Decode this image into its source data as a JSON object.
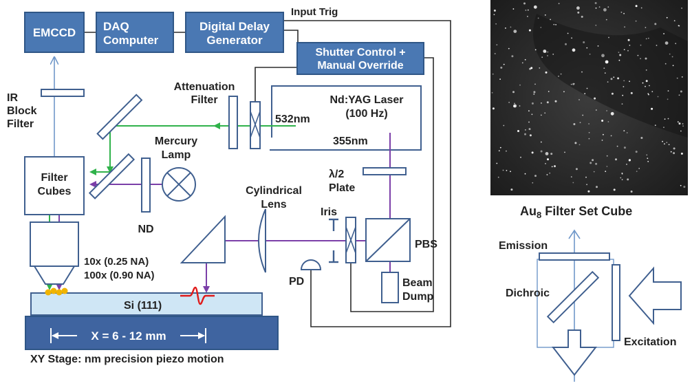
{
  "colors": {
    "box_fill": "#4a78b3",
    "optic_stroke": "#3f5f8f",
    "green_beam": "#2fb24a",
    "purple_beam": "#7b3fa8",
    "blue_beam": "#6f97c9",
    "sample": "#cfe6f5",
    "stage": "#3f64a0",
    "gold": "#f0b400",
    "pulse": "#e01a1a"
  },
  "boxes": {
    "emccd": "EMCCD",
    "daq_1": "DAQ",
    "daq_2": "Computer",
    "delay_1": "Digital Delay",
    "delay_2": "Generator",
    "shutter_1": "Shutter Control +",
    "shutter_2": "Manual Override"
  },
  "labels": {
    "input_trig": "Input Trig",
    "ir_1": "IR",
    "ir_2": "Block",
    "ir_3": "Filter",
    "atten_1": "Attenuation",
    "atten_2": "Filter",
    "laser_1": "Nd:YAG Laser",
    "laser_2": "(100 Hz)",
    "wl_532": "532nm",
    "wl_355": "355nm",
    "mercury_1": "Mercury",
    "mercury_2": "Lamp",
    "filter_cubes_1": "Filter",
    "filter_cubes_2": "Cubes",
    "halfwave_1": "λ/2",
    "halfwave_2": "Plate",
    "nd": "ND",
    "cyl_1": "Cylindrical",
    "cyl_2": "Lens",
    "iris": "Iris",
    "pbs": "PBS",
    "objective_1": "10x (0.25 NA)",
    "objective_2": "100x (0.90 NA)",
    "pd": "PD",
    "dump_1": "Beam",
    "dump_2": "Dump",
    "sample": "Si (111)",
    "distance": "X = 6 - 12 mm",
    "stage": "XY Stage: nm precision piezo motion"
  },
  "inset": {
    "title_main": "Au",
    "title_sub": "8",
    "title_rest": " Filter Set Cube",
    "emission": "Emission",
    "dichroic": "Dichroic",
    "excitation": "Excitation"
  }
}
